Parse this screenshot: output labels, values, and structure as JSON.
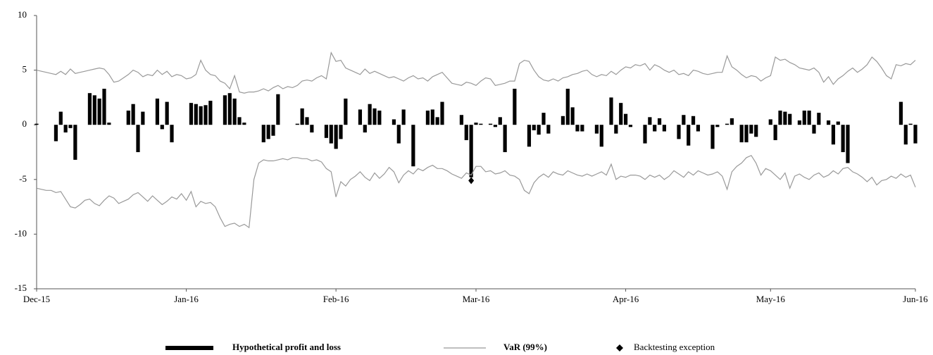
{
  "chart_data": {
    "type": "combo",
    "categories": [
      "Dec-15",
      null,
      null,
      null,
      null,
      null,
      null,
      null,
      null,
      null,
      null,
      null,
      null,
      null,
      null,
      null,
      null,
      null,
      null,
      null,
      null,
      null,
      null,
      null,
      null,
      null,
      null,
      null,
      null,
      null,
      null,
      "Jan-16",
      null,
      null,
      null,
      null,
      null,
      null,
      null,
      null,
      null,
      null,
      null,
      null,
      null,
      null,
      null,
      null,
      null,
      null,
      null,
      null,
      null,
      null,
      null,
      null,
      null,
      null,
      null,
      null,
      null,
      null,
      "Feb-16",
      null,
      null,
      null,
      null,
      null,
      null,
      null,
      null,
      null,
      null,
      null,
      null,
      null,
      null,
      null,
      null,
      null,
      null,
      null,
      null,
      null,
      null,
      null,
      null,
      null,
      null,
      null,
      null,
      "Mar-16",
      null,
      null,
      null,
      null,
      null,
      null,
      null,
      null,
      null,
      null,
      null,
      null,
      null,
      null,
      null,
      null,
      null,
      null,
      null,
      null,
      null,
      null,
      null,
      null,
      null,
      null,
      null,
      null,
      null,
      null,
      "Apr-16",
      null,
      null,
      null,
      null,
      null,
      null,
      null,
      null,
      null,
      null,
      null,
      null,
      null,
      null,
      null,
      null,
      null,
      null,
      null,
      null,
      null,
      null,
      null,
      null,
      null,
      null,
      null,
      null,
      null,
      "May-16",
      null,
      null,
      null,
      null,
      null,
      null,
      null,
      null,
      null,
      null,
      null,
      null,
      null,
      null,
      null,
      null,
      null,
      null,
      null,
      null,
      null,
      null,
      null,
      null,
      null,
      null,
      null,
      null,
      null,
      "Jun-16"
    ],
    "series": [
      {
        "name": "Hypothetical profit and loss",
        "type": "bar",
        "color": "#000000",
        "values": [
          0.1,
          0,
          0,
          0,
          -1.5,
          1.2,
          -0.7,
          -0.3,
          -3.2,
          0,
          0,
          2.9,
          2.7,
          2.4,
          3.3,
          0.2,
          0,
          0,
          0,
          1.3,
          1.9,
          -2.5,
          1.2,
          0,
          0,
          2.4,
          -0.4,
          2.1,
          -1.6,
          0,
          0,
          0,
          2.0,
          1.9,
          1.7,
          1.8,
          2.2,
          0,
          0,
          2.7,
          2.9,
          2.4,
          0.7,
          0.2,
          0,
          0,
          0,
          -1.6,
          -1.3,
          -1.0,
          2.8,
          0,
          0,
          0,
          0.1,
          1.5,
          0.7,
          -0.7,
          0,
          0,
          -1.2,
          -1.7,
          -2.2,
          -1.3,
          2.4,
          0,
          0,
          1.4,
          -0.7,
          1.9,
          1.5,
          1.3,
          0,
          0,
          0.5,
          -1.7,
          1.4,
          0,
          -3.8,
          0,
          0,
          1.3,
          1.4,
          0.7,
          2.1,
          0,
          0,
          0,
          0.9,
          -1.4,
          -4.8,
          0.2,
          0.1,
          0,
          0.1,
          -0.2,
          0.7,
          -2.5,
          0,
          3.3,
          0,
          0,
          -2.0,
          -0.5,
          -0.9,
          1.1,
          -0.8,
          0,
          0,
          0.8,
          3.3,
          1.6,
          -0.6,
          -0.6,
          0,
          0,
          -0.8,
          -2.0,
          0,
          2.5,
          -0.8,
          2.0,
          1.0,
          -0.2,
          0,
          0,
          -1.7,
          0.7,
          -0.6,
          0.6,
          -0.6,
          0,
          0,
          -1.3,
          0.9,
          -1.9,
          0.8,
          -0.6,
          0,
          0,
          -2.2,
          -0.2,
          0,
          0.1,
          0.6,
          0,
          -1.6,
          -1.6,
          -0.8,
          -1.1,
          0,
          0,
          0.5,
          -1.4,
          1.3,
          1.2,
          1.0,
          0,
          0.4,
          1.3,
          1.3,
          -0.8,
          1.1,
          0,
          0.4,
          -1.8,
          0.3,
          -2.5,
          -3.5,
          0,
          0,
          0,
          0,
          0,
          0,
          0,
          0,
          0,
          0,
          2.1,
          -1.8,
          0.1,
          -1.7
        ]
      },
      {
        "name": "VaR (99%)",
        "type": "line",
        "color": "#999999",
        "values": [
          5.0,
          4.9,
          4.8,
          4.7,
          4.6,
          4.9,
          4.6,
          5.1,
          4.7,
          4.8,
          4.9,
          5.0,
          5.1,
          5.2,
          5.1,
          4.6,
          3.9,
          4.0,
          4.3,
          4.6,
          5.0,
          4.8,
          4.4,
          4.6,
          4.5,
          5.0,
          4.6,
          4.9,
          4.4,
          4.6,
          4.5,
          4.2,
          4.3,
          4.6,
          5.9,
          5.0,
          4.6,
          4.5,
          4.0,
          3.8,
          3.3,
          4.5,
          3.0,
          2.9,
          3.0,
          3.0,
          3.1,
          3.3,
          3.1,
          3.4,
          3.6,
          3.3,
          3.5,
          3.4,
          3.6,
          4.0,
          4.1,
          4.0,
          4.3,
          4.5,
          4.2,
          6.6,
          5.8,
          5.9,
          5.2,
          5.0,
          4.8,
          4.6,
          5.1,
          4.7,
          4.9,
          4.7,
          4.5,
          4.3,
          4.4,
          4.2,
          4.0,
          4.3,
          4.5,
          4.2,
          4.3,
          4.0,
          4.4,
          4.6,
          4.8,
          4.3,
          3.8,
          3.7,
          3.6,
          3.9,
          3.8,
          3.6,
          4.0,
          4.3,
          4.2,
          3.6,
          3.7,
          3.8,
          4.0,
          4.0,
          5.6,
          5.9,
          5.8,
          5.0,
          4.4,
          4.1,
          4.0,
          4.2,
          4.0,
          4.3,
          4.4,
          4.6,
          4.7,
          4.9,
          5.0,
          4.6,
          4.4,
          4.6,
          4.5,
          4.9,
          4.6,
          5.0,
          5.3,
          5.2,
          5.5,
          5.4,
          5.6,
          5.0,
          5.5,
          5.3,
          5.0,
          4.8,
          5.0,
          4.6,
          4.7,
          4.5,
          5.0,
          4.9,
          4.7,
          4.6,
          4.7,
          4.8,
          4.8,
          6.3,
          5.3,
          5.0,
          4.6,
          4.3,
          4.5,
          4.4,
          4.0,
          4.3,
          4.5,
          6.2,
          5.9,
          6.0,
          5.7,
          5.5,
          5.2,
          5.1,
          5.0,
          5.2,
          4.8,
          3.9,
          4.4,
          3.7,
          4.2,
          4.5,
          4.9,
          5.2,
          4.8,
          5.1,
          5.5,
          6.2,
          5.8,
          5.2,
          4.5,
          4.2,
          5.5,
          5.4,
          5.6,
          5.5,
          5.9
        ],
        "lower": [
          -5.8,
          -5.9,
          -6.0,
          -6.0,
          -6.2,
          -6.1,
          -6.8,
          -7.5,
          -7.6,
          -7.3,
          -6.9,
          -6.8,
          -7.2,
          -7.4,
          -6.9,
          -6.5,
          -6.7,
          -7.2,
          -7.0,
          -6.8,
          -6.4,
          -6.2,
          -6.6,
          -7.0,
          -6.5,
          -6.9,
          -7.3,
          -7.0,
          -6.6,
          -6.8,
          -6.3,
          -6.9,
          -6.1,
          -7.5,
          -7.0,
          -7.2,
          -7.1,
          -7.5,
          -8.5,
          -9.3,
          -9.1,
          -9.0,
          -9.3,
          -9.1,
          -9.4,
          -5.0,
          -3.5,
          -3.2,
          -3.3,
          -3.3,
          -3.2,
          -3.1,
          -3.2,
          -3.0,
          -3.0,
          -3.1,
          -3.1,
          -3.3,
          -3.2,
          -3.4,
          -4.0,
          -4.3,
          -6.6,
          -5.2,
          -5.6,
          -5.0,
          -4.7,
          -4.3,
          -4.8,
          -5.1,
          -4.4,
          -4.9,
          -4.5,
          -3.9,
          -4.3,
          -5.3,
          -4.6,
          -4.2,
          -4.5,
          -4.0,
          -4.2,
          -3.9,
          -3.7,
          -4.0,
          -4.0,
          -4.2,
          -4.5,
          -4.7,
          -4.9,
          -4.4,
          -4.6,
          -3.8,
          -3.8,
          -4.3,
          -4.2,
          -4.5,
          -4.4,
          -4.2,
          -4.6,
          -4.7,
          -5.0,
          -6.0,
          -6.3,
          -5.3,
          -4.8,
          -4.5,
          -4.8,
          -4.3,
          -4.5,
          -4.6,
          -4.2,
          -4.4,
          -4.6,
          -4.7,
          -4.5,
          -4.7,
          -4.5,
          -4.3,
          -4.6,
          -3.6,
          -5.0,
          -4.7,
          -4.8,
          -4.6,
          -4.6,
          -4.7,
          -5.0,
          -4.6,
          -4.8,
          -4.6,
          -5.0,
          -4.7,
          -4.2,
          -4.5,
          -4.8,
          -4.3,
          -4.6,
          -4.2,
          -4.4,
          -4.6,
          -4.5,
          -4.3,
          -4.7,
          -5.9,
          -4.3,
          -3.8,
          -3.5,
          -3.0,
          -2.8,
          -3.5,
          -4.6,
          -4.0,
          -4.2,
          -4.6,
          -5.0,
          -4.4,
          -5.8,
          -4.7,
          -4.5,
          -4.8,
          -5.0,
          -4.6,
          -4.4,
          -4.8,
          -4.6,
          -4.2,
          -4.5,
          -4.0,
          -3.9,
          -4.3,
          -4.5,
          -4.8,
          -5.2,
          -4.8,
          -5.5,
          -5.1,
          -5.0,
          -4.7,
          -4.9,
          -4.5,
          -4.8,
          -4.6,
          -5.7
        ]
      },
      {
        "name": "Backtesting exception",
        "type": "marker",
        "color": "#000000",
        "values": [
          null,
          null,
          null,
          null,
          null,
          null,
          null,
          null,
          null,
          null,
          null,
          null,
          null,
          null,
          null,
          null,
          null,
          null,
          null,
          null,
          null,
          null,
          null,
          null,
          null,
          null,
          null,
          null,
          null,
          null,
          null,
          null,
          null,
          null,
          null,
          null,
          null,
          null,
          null,
          null,
          null,
          null,
          null,
          null,
          null,
          null,
          null,
          null,
          null,
          null,
          null,
          null,
          null,
          null,
          null,
          null,
          null,
          null,
          null,
          null,
          null,
          null,
          null,
          null,
          null,
          null,
          null,
          null,
          null,
          null,
          null,
          null,
          null,
          null,
          null,
          null,
          null,
          null,
          null,
          null,
          null,
          null,
          null,
          null,
          null,
          null,
          null,
          null,
          null,
          null,
          -5.1,
          null,
          null,
          null,
          null,
          null,
          null,
          null,
          null,
          null,
          null,
          null,
          null,
          null,
          null,
          null,
          null,
          null,
          null,
          null,
          null,
          null,
          null,
          null,
          null,
          null,
          null,
          null,
          null,
          null,
          null,
          null,
          null,
          null,
          null,
          null,
          null,
          null,
          null,
          null,
          null,
          null,
          null,
          null,
          null,
          null,
          null,
          null,
          null,
          null,
          null,
          null,
          null,
          null,
          null,
          null,
          null,
          null,
          null,
          null,
          null,
          null,
          null,
          null,
          null,
          null,
          null,
          null,
          null,
          null,
          null,
          null,
          null,
          null,
          null,
          null,
          null,
          null,
          null,
          null,
          null,
          null,
          null,
          null,
          null,
          null,
          null,
          null,
          null,
          null,
          null,
          null,
          null
        ]
      }
    ],
    "ylim": [
      -15,
      10
    ],
    "yticks": [
      -15,
      -10,
      -5,
      0,
      5,
      10
    ],
    "grid": false,
    "legend": "bottom"
  }
}
